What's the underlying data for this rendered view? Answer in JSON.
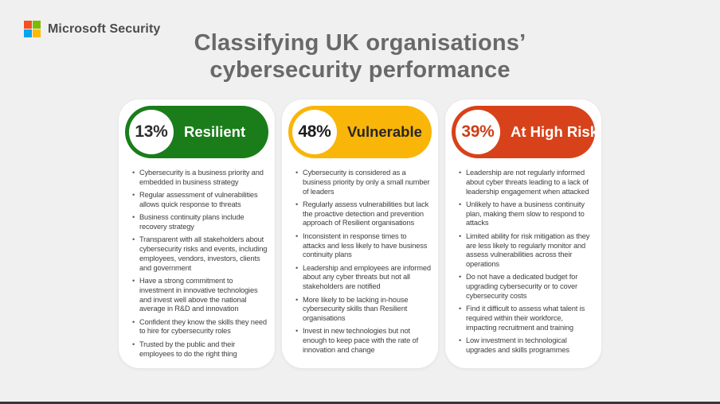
{
  "page": {
    "background": "#F0F0F0",
    "bottom_line_color": "#383838"
  },
  "header": {
    "logo": {
      "text": "Microsoft Security",
      "square_colors": [
        "#F25022",
        "#7FBA00",
        "#00A4EF",
        "#FFB900"
      ]
    },
    "title_line1": "Classifying UK organisations’",
    "title_line2": "cybersecurity performance",
    "title_color": "#696969"
  },
  "categories": [
    {
      "percent": "13%",
      "label": "Resilient",
      "color": "#1A7D1A",
      "percent_color": "#2E2E2E",
      "label_color": "#FFFFFF",
      "bullets": [
        "Cybersecurity is a business priority and embedded in business strategy",
        "Regular assessment of vulnerabilities allows quick response to threats",
        "Business continuity plans include recovery strategy",
        "Transparent with all stakeholders about cybersecurity risks and events, including employees, vendors, investors, clients and government",
        "Have a strong commitment to investment in innovative technologies and invest well above the national average in R&D and innovation",
        "Confident they know the skills they need to hire for cybersecurity roles",
        "Trusted by the public and their employees to do the right thing"
      ]
    },
    {
      "percent": "48%",
      "label": "Vulnerable",
      "color": "#F9B508",
      "percent_color": "#1C1C1C",
      "label_color": "#262626",
      "bullets": [
        "Cybersecurity is considered as a business priority by only a small number of leaders",
        "Regularly assess vulnerabilities but lack the proactive detection and prevention approach of Resilient organisations",
        "Inconsistent in response times to attacks and less likely to have business continuity plans",
        "Leadership and employees are informed about any cyber threats but not all stakeholders are notified",
        "More likely to be lacking in-house cybersecurity skills than Resilient organisations",
        "Invest in new technologies but not enough to keep pace with the rate of innovation and change"
      ]
    },
    {
      "percent": "39%",
      "label": "At High Risk",
      "color": "#D8421A",
      "percent_color": "#CC3F16",
      "label_color": "#FFFFFF",
      "bullets": [
        "Leadership are not regularly informed about cyber threats leading to a lack of leadership engagement when attacked",
        "Unlikely to have a business continuity plan, making them slow to respond to attacks",
        "Limited ability for risk mitigation as they are less likely to regularly monitor and assess vulnerabilities across their operations",
        "Do not have a dedicated budget for upgrading cybersecurity or to cover cybersecurity costs",
        "Find it difficult to assess what talent is required within their workforce, impacting recruitment and training",
        "Low investment in technological upgrades and skills programmes"
      ]
    }
  ]
}
